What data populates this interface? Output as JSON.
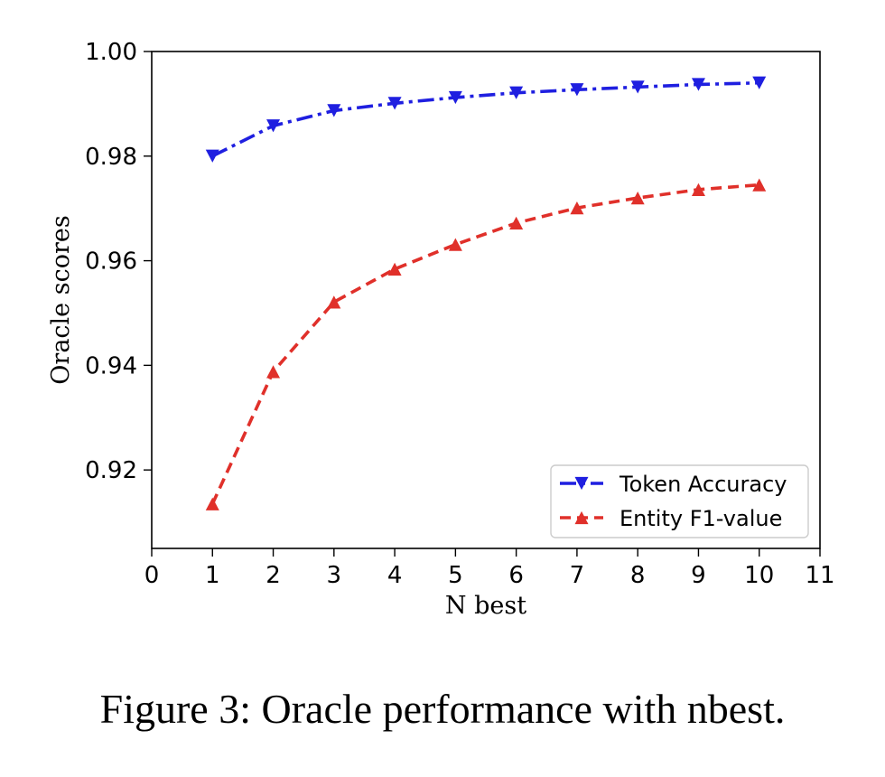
{
  "caption": "Figure 3: Oracle performance with nbest.",
  "chart_data": {
    "type": "line",
    "title": "",
    "xlabel": "N best",
    "ylabel": "Oracle scores",
    "xlim": [
      0,
      11
    ],
    "ylim": [
      0.905,
      1.0
    ],
    "xticks": [
      0,
      1,
      2,
      3,
      4,
      5,
      6,
      7,
      8,
      9,
      10,
      11
    ],
    "yticks": [
      0.92,
      0.94,
      0.96,
      0.98,
      1.0
    ],
    "ytick_labels": [
      "0.92",
      "0.94",
      "0.96",
      "0.98",
      "1.00"
    ],
    "grid": false,
    "legend_position": "lower-right",
    "x": [
      1,
      2,
      3,
      4,
      5,
      6,
      7,
      8,
      9,
      10
    ],
    "series": [
      {
        "name": "Token Accuracy",
        "color": "#1f1fe0",
        "linestyle": "dash-dot",
        "marker": "triangle-down",
        "values": [
          0.98,
          0.9858,
          0.9887,
          0.9901,
          0.9912,
          0.9921,
          0.9927,
          0.9932,
          0.9937,
          0.994
        ]
      },
      {
        "name": "Entity F1-value",
        "color": "#e0302a",
        "linestyle": "dashed",
        "marker": "triangle-up",
        "values": [
          0.9135,
          0.9388,
          0.9521,
          0.9584,
          0.9631,
          0.9672,
          0.9701,
          0.972,
          0.9736,
          0.9745
        ]
      }
    ]
  }
}
